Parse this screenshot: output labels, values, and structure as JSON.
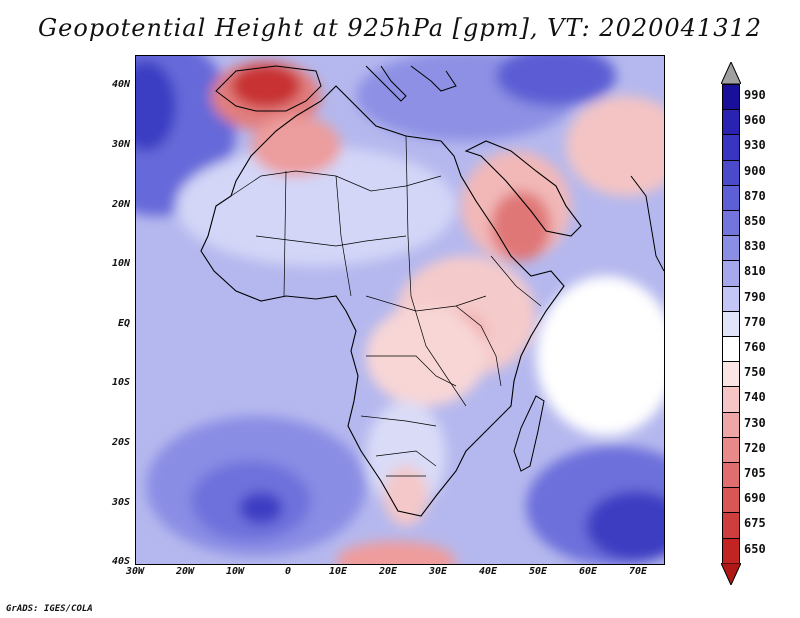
{
  "title": "Geopotential Height at 925hPa [gpm], VT: 2020041312",
  "credit": "GrADS: IGES/COLA",
  "axes": {
    "lat_labels": [
      "40N",
      "30N",
      "20N",
      "10N",
      "EQ",
      "10S",
      "20S",
      "30S",
      "40S"
    ],
    "lon_labels": [
      "30W",
      "20W",
      "10W",
      "0",
      "10E",
      "20E",
      "30E",
      "40E",
      "50E",
      "60E",
      "70E"
    ]
  },
  "colorbar": {
    "labels": [
      "990",
      "960",
      "930",
      "900",
      "870",
      "850",
      "830",
      "810",
      "790",
      "770",
      "760",
      "750",
      "740",
      "730",
      "720",
      "705",
      "690",
      "675",
      "650"
    ],
    "colors": [
      "#1a0f9a",
      "#2a22b0",
      "#3a35c0",
      "#4a4acb",
      "#5d5fd6",
      "#7375dd",
      "#8b8ee5",
      "#a5a8ed",
      "#c3c6f4",
      "#e2e4fa",
      "#ffffff",
      "#fbe4e4",
      "#f6c6c6",
      "#efa6a6",
      "#e98989",
      "#e06e6e",
      "#d85656",
      "#cf3e3e",
      "#c22424"
    ],
    "top_arrow_color": "#a0a0a0",
    "bottom_arrow_color": "#b01818"
  }
}
